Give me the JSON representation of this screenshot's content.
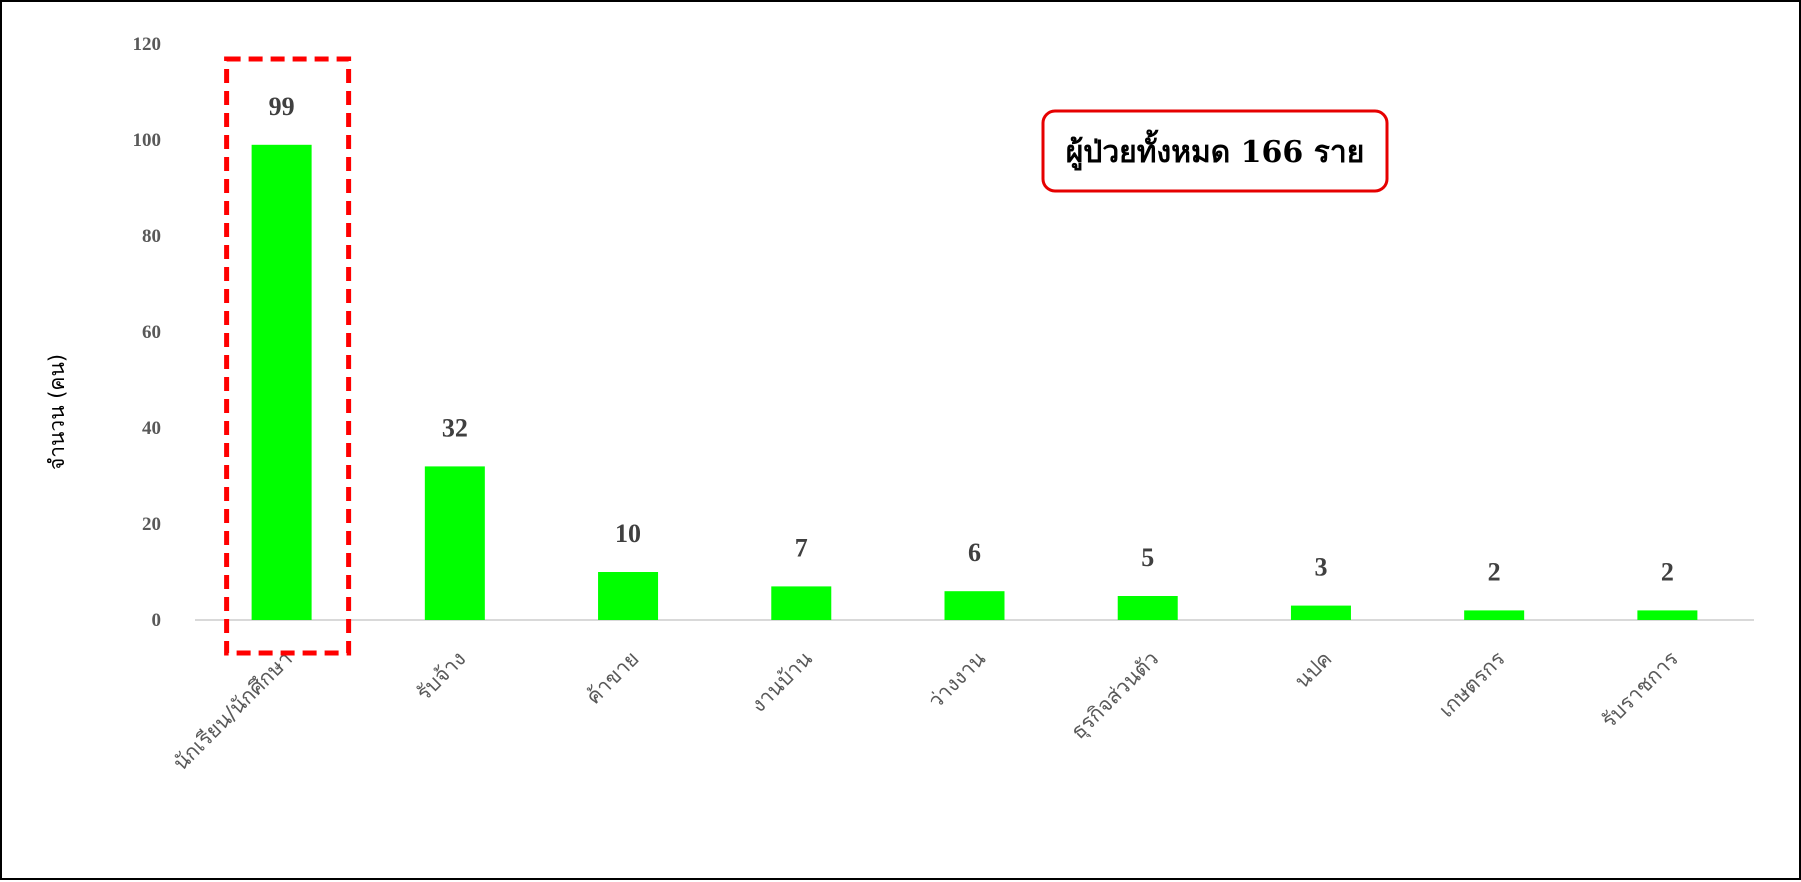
{
  "chart_data": {
    "type": "bar",
    "categories": [
      "นักเรียน/นักศึกษา",
      "รับจ้าง",
      "ค้าขาย",
      "งานบ้าน",
      "ว่างงาน",
      "ธุรกิจส่วนตัว",
      "นปค",
      "เกษตรกร",
      "รับราชการ"
    ],
    "values": [
      99,
      32,
      10,
      7,
      6,
      5,
      3,
      2,
      2
    ],
    "data_labels": [
      "99",
      "32",
      "10",
      "7",
      "6",
      "5",
      "3",
      "2",
      "2"
    ],
    "title": "",
    "xlabel": "",
    "ylabel": "จำนวน (คน)",
    "ylim": [
      0,
      120
    ],
    "yticks": [
      0,
      20,
      40,
      60,
      80,
      100,
      120
    ],
    "ytick_labels": [
      "0",
      "20",
      "40",
      "60",
      "80",
      "100",
      "120"
    ],
    "grid": false,
    "legend": "none",
    "highlighted_category": "นักเรียน/นักศึกษา",
    "annotation": "ผู้ป่วยทั้งหมด 166 ราย",
    "colors": {
      "bar": "#00ff00",
      "highlight": "#ff0000",
      "annotation_border": "#e60000",
      "axis_line": "#d9d9d9"
    }
  }
}
